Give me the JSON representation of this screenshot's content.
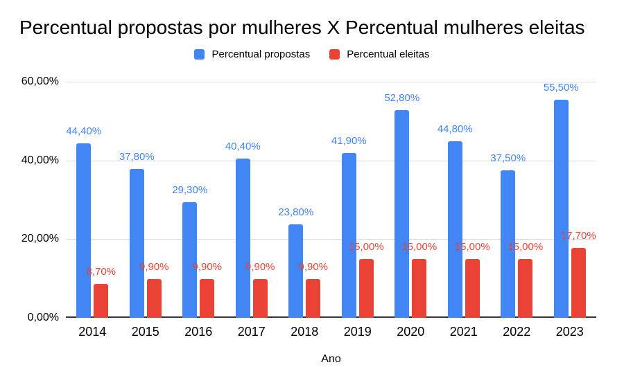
{
  "title": "Percentual propostas por mulheres X Percentual mulheres eleitas",
  "legend": {
    "items": [
      {
        "label": "Percentual propostas",
        "color": "#4285F4"
      },
      {
        "label": "Percentual eleitas",
        "color": "#EA4335"
      }
    ]
  },
  "axis": {
    "x_title": "Ano",
    "y_ticks": [
      "60,00%",
      "40,00%",
      "20,00%",
      "0,00%"
    ]
  },
  "chart_data": {
    "type": "bar",
    "title": "Percentual propostas por mulheres X Percentual mulheres eleitas",
    "xlabel": "Ano",
    "ylabel": "",
    "ylim": [
      0,
      60
    ],
    "grid": true,
    "legend_position": "top",
    "categories": [
      "2014",
      "2015",
      "2016",
      "2017",
      "2018",
      "2019",
      "2020",
      "2021",
      "2022",
      "2023"
    ],
    "series": [
      {
        "name": "Percentual propostas",
        "key": "propostas",
        "color": "#4285F4",
        "values": [
          44.4,
          37.8,
          29.3,
          40.4,
          23.8,
          41.9,
          52.8,
          44.8,
          37.5,
          55.5
        ],
        "labels": [
          "44,40%",
          "37,80%",
          "29,30%",
          "40,40%",
          "23,80%",
          "41,90%",
          "52,80%",
          "44,80%",
          "37,50%",
          "55,50%"
        ]
      },
      {
        "name": "Percentual eleitas",
        "key": "eleitas",
        "color": "#EA4335",
        "values": [
          8.7,
          9.9,
          9.9,
          9.9,
          9.9,
          15.0,
          15.0,
          15.0,
          15.0,
          17.7
        ],
        "labels": [
          "8,70%",
          "9,90%",
          "9,90%",
          "9,90%",
          "9,90%",
          "15,00%",
          "15,00%",
          "15,00%",
          "15,00%",
          "17,70%"
        ]
      }
    ]
  }
}
